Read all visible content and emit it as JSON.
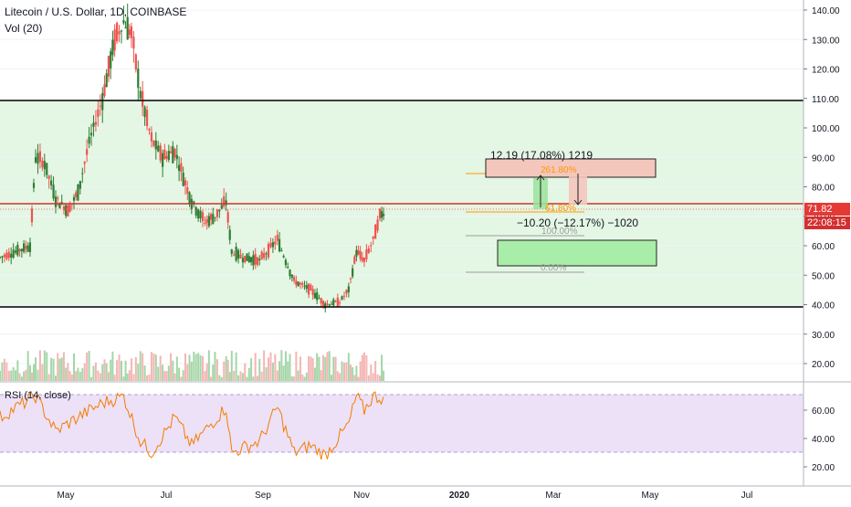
{
  "header": {
    "symbol_title": "Litecoin / U.S. Dollar, 1D, COINBASE",
    "volume_label": "Vol (20)",
    "rsi_label": "RSI (14, close)"
  },
  "price_axis": {
    "ticks": [
      "140.00",
      "130.00",
      "120.00",
      "110.00",
      "100.00",
      "90.00",
      "80.00",
      "70.00",
      "60.00",
      "50.00",
      "40.00",
      "30.00",
      "20.00"
    ],
    "current_price": "71.82",
    "countdown": "22:08:15"
  },
  "rsi_axis": {
    "ticks": [
      "60.00",
      "40.00",
      "20.00"
    ]
  },
  "time_axis": {
    "labels": [
      "May",
      "Jul",
      "Sep",
      "Nov",
      "2020",
      "Mar",
      "May",
      "Jul"
    ]
  },
  "annotations": {
    "long_measure": "12.19 (17.08%) 1219",
    "short_measure": "−10.20 (−12.17%) −1020",
    "fib_261": "261.80%",
    "fib_61": "61.80%",
    "fib_100": "100.00%",
    "fib_0": "0.00%"
  },
  "colors": {
    "up": "#26a69a",
    "candle_up": "#2e7d32",
    "candle_down": "#ef5350",
    "range_fill": "#e4f6e4",
    "red_level": "#d32f2f",
    "rsi": "#f57c00",
    "rsi_band": "#ece1f7",
    "badge_price": "#e53935",
    "badge_time": "#d32f2f"
  },
  "chart_data": {
    "type": "candlestick",
    "title": "Litecoin / U.S. Dollar, 1D, COINBASE",
    "x_range": [
      "2019-03-01",
      "2020-08-15"
    ],
    "y_range": [
      15,
      145
    ],
    "horizontal_levels": [
      {
        "price": 109,
        "color": "black"
      },
      {
        "price": 74,
        "color": "red"
      },
      {
        "price": 38.5,
        "color": "black"
      }
    ],
    "range_zone": [
      38.5,
      109
    ],
    "price_path": [
      {
        "date": "2019-03-01",
        "close": 56
      },
      {
        "date": "2019-03-15",
        "close": 58
      },
      {
        "date": "2019-03-28",
        "close": 60
      },
      {
        "date": "2019-04-02",
        "close": 90
      },
      {
        "date": "2019-04-10",
        "close": 88
      },
      {
        "date": "2019-04-20",
        "close": 76
      },
      {
        "date": "2019-05-01",
        "close": 72
      },
      {
        "date": "2019-05-10",
        "close": 78
      },
      {
        "date": "2019-05-20",
        "close": 95
      },
      {
        "date": "2019-06-01",
        "close": 110
      },
      {
        "date": "2019-06-12",
        "close": 130
      },
      {
        "date": "2019-06-20",
        "close": 136
      },
      {
        "date": "2019-06-27",
        "close": 132
      },
      {
        "date": "2019-07-05",
        "close": 112
      },
      {
        "date": "2019-07-15",
        "close": 96
      },
      {
        "date": "2019-07-25",
        "close": 90
      },
      {
        "date": "2019-08-05",
        "close": 92
      },
      {
        "date": "2019-08-20",
        "close": 75
      },
      {
        "date": "2019-09-01",
        "close": 68
      },
      {
        "date": "2019-09-10",
        "close": 70
      },
      {
        "date": "2019-09-20",
        "close": 75
      },
      {
        "date": "2019-09-25",
        "close": 58
      },
      {
        "date": "2019-10-05",
        "close": 56
      },
      {
        "date": "2019-10-20",
        "close": 55
      },
      {
        "date": "2019-11-05",
        "close": 62
      },
      {
        "date": "2019-11-20",
        "close": 48
      },
      {
        "date": "2019-12-05",
        "close": 45
      },
      {
        "date": "2019-12-18",
        "close": 40
      },
      {
        "date": "2019-12-31",
        "close": 41
      },
      {
        "date": "2020-01-08",
        "close": 45
      },
      {
        "date": "2020-01-15",
        "close": 58
      },
      {
        "date": "2020-01-22",
        "close": 55
      },
      {
        "date": "2020-01-30",
        "close": 62
      },
      {
        "date": "2020-02-05",
        "close": 70
      },
      {
        "date": "2020-02-10",
        "close": 72
      }
    ],
    "rsi": {
      "name": "RSI (14, close)",
      "band": [
        30,
        70
      ],
      "ylim": [
        15,
        80
      ],
      "points": [
        {
          "date": "2019-03-01",
          "value": 55
        },
        {
          "date": "2019-04-02",
          "value": 70
        },
        {
          "date": "2019-04-20",
          "value": 45
        },
        {
          "date": "2019-05-10",
          "value": 55
        },
        {
          "date": "2019-06-01",
          "value": 65
        },
        {
          "date": "2019-06-20",
          "value": 70
        },
        {
          "date": "2019-07-05",
          "value": 38
        },
        {
          "date": "2019-07-15",
          "value": 30
        },
        {
          "date": "2019-08-05",
          "value": 55
        },
        {
          "date": "2019-08-20",
          "value": 35
        },
        {
          "date": "2019-09-20",
          "value": 62
        },
        {
          "date": "2019-09-25",
          "value": 30
        },
        {
          "date": "2019-10-20",
          "value": 38
        },
        {
          "date": "2019-11-05",
          "value": 62
        },
        {
          "date": "2019-11-20",
          "value": 30
        },
        {
          "date": "2019-12-05",
          "value": 35
        },
        {
          "date": "2019-12-18",
          "value": 28
        },
        {
          "date": "2020-01-08",
          "value": 50
        },
        {
          "date": "2020-01-15",
          "value": 70
        },
        {
          "date": "2020-01-22",
          "value": 60
        },
        {
          "date": "2020-01-30",
          "value": 70
        },
        {
          "date": "2020-02-10",
          "value": 68
        }
      ]
    }
  }
}
